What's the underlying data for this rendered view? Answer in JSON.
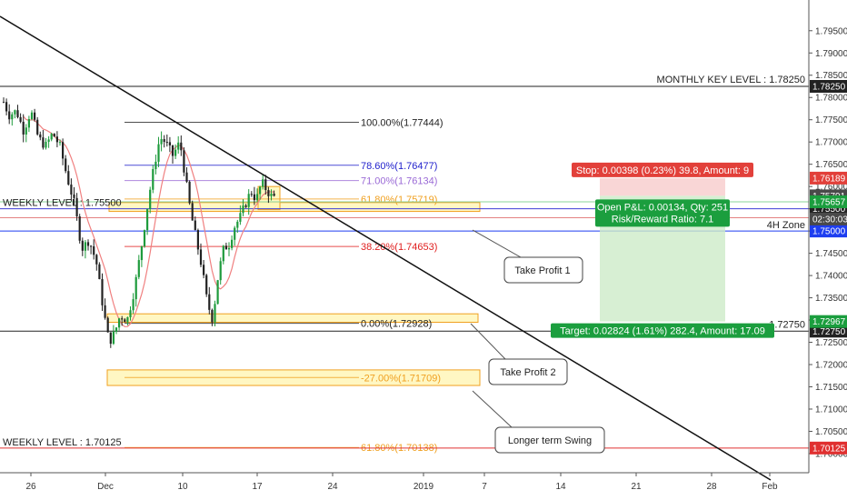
{
  "chart_data": {
    "type": "candlestick",
    "y_axis": {
      "ylim": [
        1.6957,
        1.8019
      ],
      "ticks": [
        "1.70000",
        "1.70500",
        "1.71000",
        "1.71500",
        "1.72000",
        "1.72500",
        "1.73000",
        "1.73500",
        "1.74000",
        "1.74500",
        "1.75000",
        "1.75500",
        "1.76000",
        "1.76500",
        "1.77000",
        "1.77500",
        "1.78000",
        "1.78500",
        "1.79000",
        "1.79500"
      ]
    },
    "x_axis": {
      "ticks": [
        "26",
        "Dec",
        "10",
        "17",
        "24",
        "2019",
        "7",
        "14",
        "21",
        "28",
        "Feb"
      ]
    },
    "horizontal_levels": [
      {
        "key": "monthly",
        "label": "MONTHLY KEY LEVEL : 1.78250",
        "value": 1.7825,
        "color": "#222222",
        "badge": "1.78250"
      },
      {
        "key": "weekly_upper",
        "label": "WEEKLY LEVEL : 1.75500",
        "value": 1.755,
        "color": "#3f3fd6",
        "badge": "1.75500"
      },
      {
        "key": "h4",
        "label": "4H Zone",
        "value": 1.75,
        "color": "#1e3ef0",
        "badge": "1.75000"
      },
      {
        "key": "monthly_lower",
        "label": "1.72750",
        "value": 1.7275,
        "color": "#222222",
        "badge": "1.72750"
      },
      {
        "key": "weekly_lower",
        "label": "WEEKLY LEVEL : 1.70125",
        "value": 1.70125,
        "color": "#e03030",
        "badge": "1.70125"
      }
    ],
    "fib_levels": [
      {
        "label": "100.00%(1.77444)",
        "value": 1.77444,
        "color": "#222222"
      },
      {
        "label": "78.60%(1.76477)",
        "value": 1.76477,
        "color": "#2222cc"
      },
      {
        "label": "71.00%(1.76134)",
        "value": 1.76134,
        "color": "#9a6ad6"
      },
      {
        "label": "61.80%(1.75719)",
        "value": 1.75719,
        "color": "#f0a020"
      },
      {
        "label": "38.20%(1.74653)",
        "value": 1.74653,
        "color": "#e02020"
      },
      {
        "label": "0.00%(1.72928)",
        "value": 1.72928,
        "color": "#222222"
      },
      {
        "label": "-27.00%(1.71709)",
        "value": 1.71709,
        "color": "#f0a020"
      },
      {
        "label": "61.80%(1.70138)",
        "value": 1.70138,
        "color": "#f0a020"
      }
    ],
    "price_badges": [
      {
        "text": "1.76189",
        "value": 1.76189,
        "color": "#e2403a"
      },
      {
        "text": "1.75791",
        "value": 1.75791,
        "color": "#4a4a4a"
      },
      {
        "text": "1.75657",
        "value": 1.75657,
        "color": "#1b9e3e"
      },
      {
        "text": "02:30:03",
        "value": 1.7527,
        "color": "#4a4a4a"
      },
      {
        "text": "1.72967",
        "value": 1.72967,
        "color": "#1b9e3e"
      }
    ],
    "position": {
      "stop_label": "Stop: 0.00398 (0.23%) 39.8, Amount: 9",
      "pnl_label": "Open P&L: 0.00134, Qty: 251",
      "rr_label": "Risk/Reward Ratio: 7.1",
      "target_label": "Target: 0.02824 (1.61%) 282.4, Amount: 17.09",
      "entry": 1.75791,
      "stop": 1.76189,
      "target": 1.72967
    },
    "callouts": [
      {
        "key": "tp1",
        "text": "Take Profit 1"
      },
      {
        "key": "tp2",
        "text": "Take Profit 2"
      },
      {
        "key": "swing",
        "text": "Longer term Swing"
      }
    ]
  }
}
